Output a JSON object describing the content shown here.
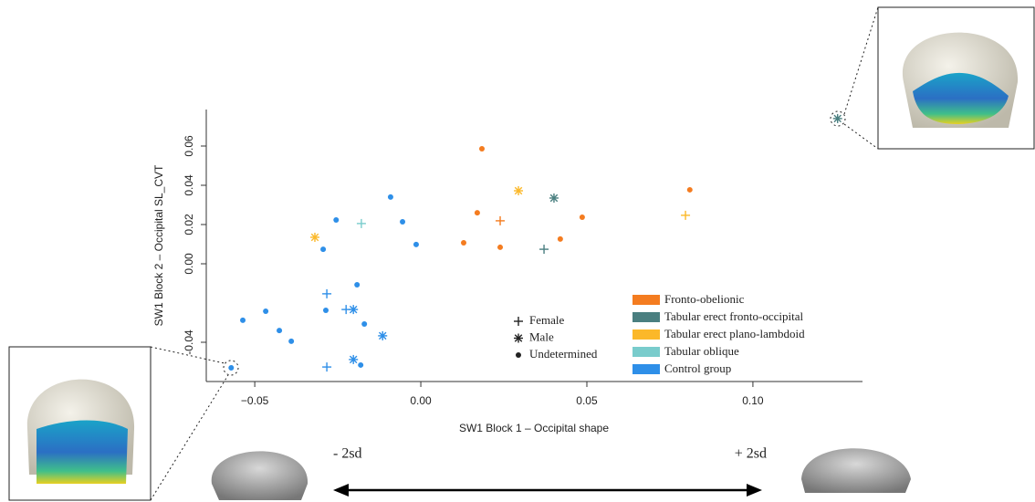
{
  "chart_data": {
    "type": "scatter",
    "x_label": "SW1 Block 1 – Occipital shape",
    "y_label": "SW1 Block 2 – Occipital SL_CVT",
    "xlim": [
      -0.0646,
      0.133
    ],
    "ylim": [
      -0.06,
      0.0786
    ],
    "xticks": [
      {
        "value": -0.05,
        "label": "−0.05"
      },
      {
        "value": 0,
        "label": "0.00"
      },
      0.05,
      {
        "value": 0.1,
        "label": "0.10"
      }
    ],
    "yticks": [
      0.06,
      0.04,
      0.02,
      {
        "value": 0,
        "label": "0.00"
      },
      -0.04
    ],
    "marker_legend": [
      {
        "label": "Female",
        "marker": "plus"
      },
      {
        "label": "Male",
        "marker": "asterisk"
      },
      {
        "label": "Undetermined",
        "marker": "dot"
      }
    ],
    "series": [
      {
        "name": "Fronto-obelionic",
        "color": "#f47c20",
        "x": [
          0.0184,
          0.017,
          0.0129,
          0.0239,
          0.0239,
          0.0486,
          0.042,
          0.081
        ],
        "y": [
          0.0586,
          0.026,
          0.0107,
          0.0084,
          0.0219,
          0.0237,
          0.0126,
          0.0377
        ],
        "markers": [
          "dot",
          "dot",
          "dot",
          "dot",
          "plus",
          "dot",
          "dot",
          "dot"
        ]
      },
      {
        "name": "Tabular erect fronto-occipital",
        "color": "#4a7f80",
        "x": [
          0.0401,
          0.0371,
          0.1255
        ],
        "y": [
          0.0335,
          0.0074,
          0.074
        ],
        "markers": [
          "asterisk",
          "plus",
          "asterisk"
        ]
      },
      {
        "name": "Tabular erect plano-lambdoid",
        "color": "#fbb829",
        "x": [
          0.0294,
          -0.0319,
          0.0797
        ],
        "y": [
          0.0372,
          0.0135,
          0.0247
        ],
        "markers": [
          "asterisk",
          "asterisk",
          "plus"
        ]
      },
      {
        "name": "Tabular oblique",
        "color": "#79cccc",
        "x": [
          -0.0179
        ],
        "y": [
          0.0205
        ],
        "markers": [
          "plus"
        ]
      },
      {
        "name": "Control group",
        "color": "#2e8fe8",
        "x": [
          -0.0091,
          -0.0255,
          -0.0055,
          -0.0014,
          -0.0294,
          -0.0192,
          -0.0283,
          -0.0203,
          -0.0225,
          -0.0286,
          -0.0467,
          -0.0536,
          -0.017,
          -0.0426,
          -0.0115,
          -0.039,
          -0.0203,
          -0.0181,
          -0.0283,
          -0.0571
        ],
        "y": [
          0.034,
          0.0223,
          0.0214,
          0.0098,
          0.0074,
          -0.0107,
          -0.0153,
          -0.0233,
          -0.0233,
          -0.0237,
          -0.0242,
          -0.0288,
          -0.0307,
          -0.034,
          -0.0367,
          -0.0395,
          -0.0488,
          -0.0516,
          -0.0526,
          -0.053
        ],
        "markers": [
          "dot",
          "dot",
          "dot",
          "dot",
          "dot",
          "dot",
          "plus",
          "asterisk",
          "plus",
          "dot",
          "dot",
          "dot",
          "dot",
          "dot",
          "asterisk",
          "dot",
          "asterisk",
          "dot",
          "plus",
          "dot"
        ]
      }
    ],
    "arrow_left_label": "- 2sd",
    "arrow_right_label": "+ 2sd"
  }
}
